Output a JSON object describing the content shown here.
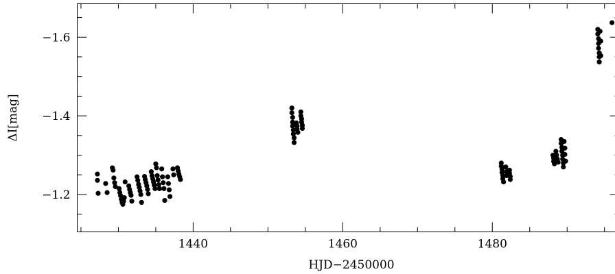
{
  "chart_data": {
    "type": "scatter",
    "title": "",
    "xlabel": "HJD−2450000",
    "ylabel": "ΔI[mag]",
    "xlim": [
      1424.5,
      1497
    ],
    "ylim": [
      -1.105,
      -1.685
    ],
    "y_inverted": true,
    "x_major_ticks": [
      1440,
      1460,
      1480
    ],
    "x_tick_labels": [
      "1440",
      "1460",
      "1480"
    ],
    "y_major_ticks": [
      -1.6,
      -1.4,
      -1.2
    ],
    "y_tick_labels": [
      "−1.6",
      "−1.4",
      "−1.2"
    ],
    "grid": false,
    "legend": "none",
    "marker_color": "#000000",
    "points": [
      [
        1427.2,
        -1.252
      ],
      [
        1427.2,
        -1.236
      ],
      [
        1427.3,
        -1.203
      ],
      [
        1428.3,
        -1.228
      ],
      [
        1428.5,
        -1.205
      ],
      [
        1429.2,
        -1.268
      ],
      [
        1429.3,
        -1.262
      ],
      [
        1429.4,
        -1.242
      ],
      [
        1429.5,
        -1.23
      ],
      [
        1429.6,
        -1.22
      ],
      [
        1430.1,
        -1.215
      ],
      [
        1430.2,
        -1.205
      ],
      [
        1430.3,
        -1.197
      ],
      [
        1430.4,
        -1.188
      ],
      [
        1430.5,
        -1.18
      ],
      [
        1430.6,
        -1.175
      ],
      [
        1430.7,
        -1.183
      ],
      [
        1430.8,
        -1.192
      ],
      [
        1430.9,
        -1.232
      ],
      [
        1431.4,
        -1.222
      ],
      [
        1431.5,
        -1.213
      ],
      [
        1431.6,
        -1.205
      ],
      [
        1431.7,
        -1.198
      ],
      [
        1431.8,
        -1.183
      ],
      [
        1432.5,
        -1.245
      ],
      [
        1432.6,
        -1.236
      ],
      [
        1432.7,
        -1.226
      ],
      [
        1432.8,
        -1.218
      ],
      [
        1432.9,
        -1.209
      ],
      [
        1433.0,
        -1.2
      ],
      [
        1433.1,
        -1.18
      ],
      [
        1433.5,
        -1.246
      ],
      [
        1433.6,
        -1.238
      ],
      [
        1433.7,
        -1.23
      ],
      [
        1433.8,
        -1.222
      ],
      [
        1433.9,
        -1.213
      ],
      [
        1434.0,
        -1.202
      ],
      [
        1434.4,
        -1.258
      ],
      [
        1434.5,
        -1.248
      ],
      [
        1434.6,
        -1.24
      ],
      [
        1434.7,
        -1.232
      ],
      [
        1434.8,
        -1.224
      ],
      [
        1434.9,
        -1.215
      ],
      [
        1435.0,
        -1.278
      ],
      [
        1435.1,
        -1.268
      ],
      [
        1435.2,
        -1.248
      ],
      [
        1435.3,
        -1.237
      ],
      [
        1435.4,
        -1.225
      ],
      [
        1435.5,
        -1.215
      ],
      [
        1435.8,
        -1.265
      ],
      [
        1435.9,
        -1.245
      ],
      [
        1436.0,
        -1.23
      ],
      [
        1436.1,
        -1.215
      ],
      [
        1436.2,
        -1.185
      ],
      [
        1436.6,
        -1.245
      ],
      [
        1436.7,
        -1.228
      ],
      [
        1436.8,
        -1.212
      ],
      [
        1436.9,
        -1.195
      ],
      [
        1437.3,
        -1.265
      ],
      [
        1437.4,
        -1.25
      ],
      [
        1437.9,
        -1.268
      ],
      [
        1438.0,
        -1.26
      ],
      [
        1438.1,
        -1.252
      ],
      [
        1438.2,
        -1.245
      ],
      [
        1438.3,
        -1.238
      ],
      [
        1453.2,
        -1.42
      ],
      [
        1453.2,
        -1.408
      ],
      [
        1453.3,
        -1.396
      ],
      [
        1453.3,
        -1.384
      ],
      [
        1453.3,
        -1.374
      ],
      [
        1453.4,
        -1.364
      ],
      [
        1453.4,
        -1.354
      ],
      [
        1453.5,
        -1.344
      ],
      [
        1453.5,
        -1.332
      ],
      [
        1453.8,
        -1.382
      ],
      [
        1453.9,
        -1.374
      ],
      [
        1453.9,
        -1.366
      ],
      [
        1454.0,
        -1.358
      ],
      [
        1454.4,
        -1.41
      ],
      [
        1454.4,
        -1.4
      ],
      [
        1454.5,
        -1.392
      ],
      [
        1454.5,
        -1.384
      ],
      [
        1454.6,
        -1.376
      ],
      [
        1454.6,
        -1.368
      ],
      [
        1481.2,
        -1.28
      ],
      [
        1481.2,
        -1.272
      ],
      [
        1481.3,
        -1.264
      ],
      [
        1481.3,
        -1.256
      ],
      [
        1481.4,
        -1.248
      ],
      [
        1481.4,
        -1.24
      ],
      [
        1481.5,
        -1.232
      ],
      [
        1481.8,
        -1.27
      ],
      [
        1481.9,
        -1.258
      ],
      [
        1481.9,
        -1.248
      ],
      [
        1482.3,
        -1.262
      ],
      [
        1482.3,
        -1.254
      ],
      [
        1482.4,
        -1.246
      ],
      [
        1482.4,
        -1.238
      ],
      [
        1488.1,
        -1.3
      ],
      [
        1488.2,
        -1.292
      ],
      [
        1488.2,
        -1.284
      ],
      [
        1488.3,
        -1.278
      ],
      [
        1488.5,
        -1.31
      ],
      [
        1488.6,
        -1.3
      ],
      [
        1488.7,
        -1.29
      ],
      [
        1488.8,
        -1.282
      ],
      [
        1489.2,
        -1.34
      ],
      [
        1489.2,
        -1.33
      ],
      [
        1489.3,
        -1.32
      ],
      [
        1489.3,
        -1.31
      ],
      [
        1489.4,
        -1.3
      ],
      [
        1489.4,
        -1.29
      ],
      [
        1489.5,
        -1.28
      ],
      [
        1489.5,
        -1.27
      ],
      [
        1489.6,
        -1.335
      ],
      [
        1489.7,
        -1.318
      ],
      [
        1489.7,
        -1.302
      ],
      [
        1489.8,
        -1.285
      ],
      [
        1494.1,
        -1.62
      ],
      [
        1494.1,
        -1.608
      ],
      [
        1494.2,
        -1.596
      ],
      [
        1494.2,
        -1.584
      ],
      [
        1494.2,
        -1.572
      ],
      [
        1494.3,
        -1.56
      ],
      [
        1494.3,
        -1.55
      ],
      [
        1494.3,
        -1.537
      ],
      [
        1494.4,
        -1.615
      ],
      [
        1494.5,
        -1.59
      ],
      [
        1494.5,
        -1.553
      ],
      [
        1496.0,
        -1.637
      ]
    ]
  }
}
